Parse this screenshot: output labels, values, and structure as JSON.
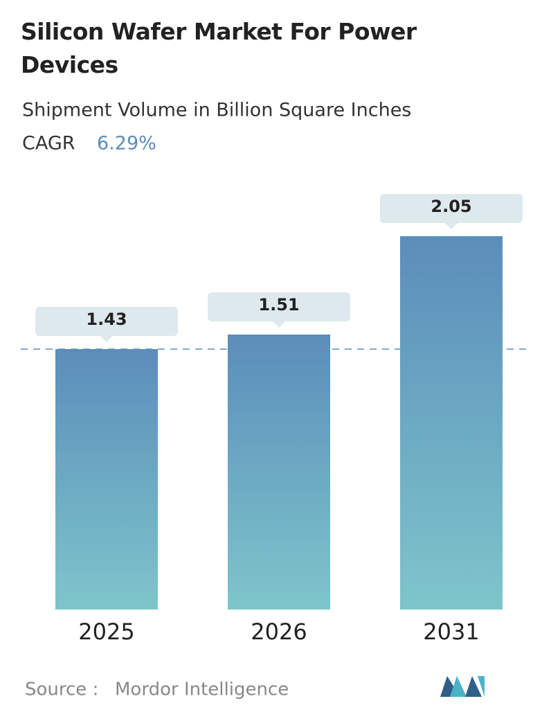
{
  "chart_data": {
    "type": "bar",
    "title": "Silicon Wafer Market For Power Devices",
    "subtitle": "Shipment Volume in Billion Square Inches",
    "cagr_label": "CAGR",
    "cagr_value": "6.29%",
    "categories": [
      "2025",
      "2026",
      "2031"
    ],
    "values": [
      1.43,
      1.51,
      2.05
    ],
    "color": "#5b8dba",
    "source_label": "Source :",
    "source": "Mordor Intelligence"
  }
}
